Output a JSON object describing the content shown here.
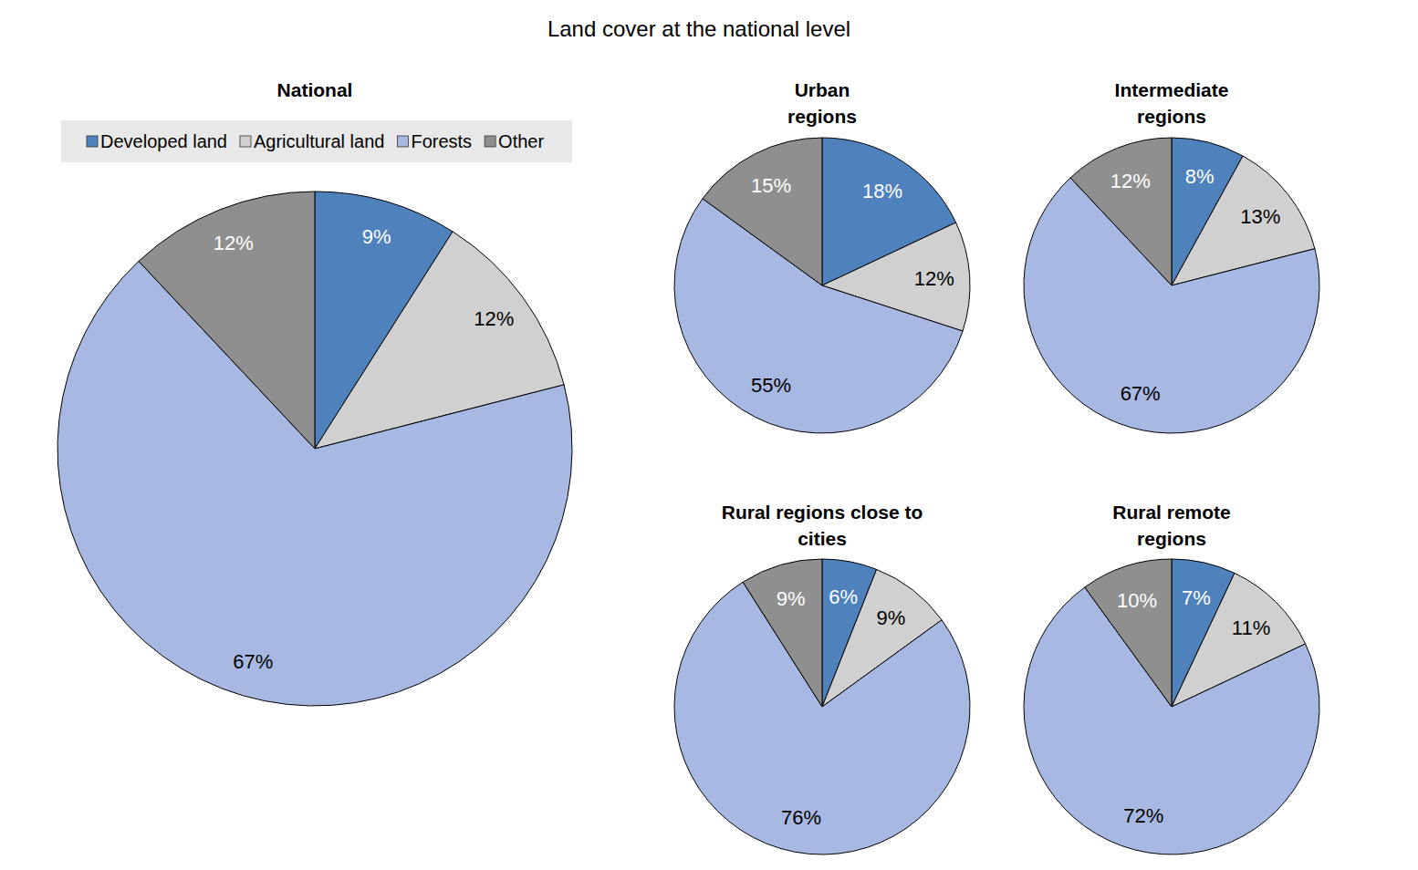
{
  "title": "Land cover at the national level",
  "chart_data": [
    {
      "type": "pie",
      "title": "National",
      "categories": [
        "Developed land",
        "Agricultural land",
        "Forests",
        "Other"
      ],
      "values": [
        9,
        12,
        67,
        12
      ],
      "value_labels": [
        "9%",
        "12%",
        "67%",
        "12%"
      ],
      "colors": [
        "#4f81bd",
        "#d0d0d0",
        "#a7b8e2",
        "#8f8f8f"
      ],
      "data_labels": true,
      "legend": "top"
    },
    {
      "type": "pie",
      "title": "Urban\nregions",
      "categories": [
        "Developed land",
        "Agricultural land",
        "Forests",
        "Other"
      ],
      "values": [
        18,
        12,
        55,
        15
      ],
      "value_labels": [
        "18%",
        "12%",
        "55%",
        "15%"
      ],
      "colors": [
        "#4f81bd",
        "#d0d0d0",
        "#a7b8e2",
        "#8f8f8f"
      ],
      "data_labels": true
    },
    {
      "type": "pie",
      "title": "Intermediate\nregions",
      "categories": [
        "Developed land",
        "Agricultural land",
        "Forests",
        "Other"
      ],
      "values": [
        8,
        13,
        67,
        12
      ],
      "value_labels": [
        "8%",
        "13%",
        "67%",
        "12%"
      ],
      "colors": [
        "#4f81bd",
        "#d0d0d0",
        "#a7b8e2",
        "#8f8f8f"
      ],
      "data_labels": true
    },
    {
      "type": "pie",
      "title": "Rural regions close to\ncities",
      "categories": [
        "Developed land",
        "Agricultural land",
        "Forests",
        "Other"
      ],
      "values": [
        6,
        9,
        76,
        9
      ],
      "value_labels": [
        "6%",
        "9%",
        "76%",
        "9%"
      ],
      "colors": [
        "#4f81bd",
        "#d0d0d0",
        "#a7b8e2",
        "#8f8f8f"
      ],
      "data_labels": true
    },
    {
      "type": "pie",
      "title": "Rural remote\nregions",
      "categories": [
        "Developed land",
        "Agricultural land",
        "Forests",
        "Other"
      ],
      "values": [
        7,
        11,
        72,
        10
      ],
      "value_labels": [
        "7%",
        "11%",
        "72%",
        "10%"
      ],
      "colors": [
        "#4f81bd",
        "#d0d0d0",
        "#a7b8e2",
        "#8f8f8f"
      ],
      "data_labels": true
    }
  ]
}
